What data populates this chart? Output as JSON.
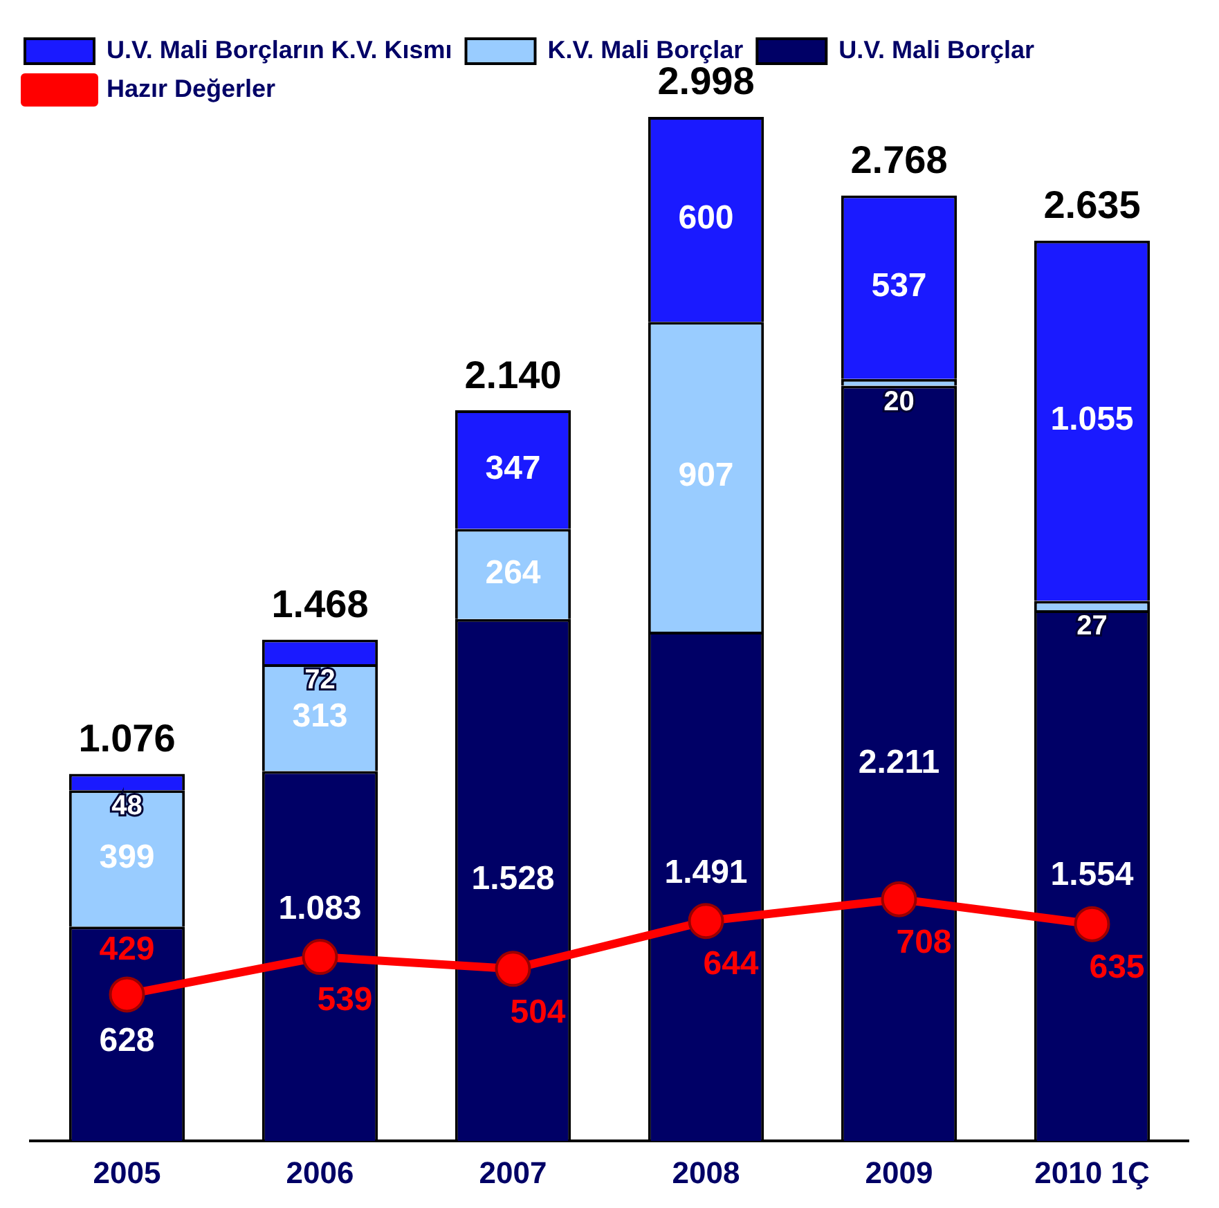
{
  "chart_data": {
    "type": "bar",
    "stacked": true,
    "categories": [
      "2005",
      "2006",
      "2007",
      "2008",
      "2009",
      "2010 1Ç"
    ],
    "series": [
      {
        "name": "U.V. Mali Borçlar",
        "color": "#000066",
        "values": [
          628,
          1083,
          1528,
          1491,
          2211,
          1554
        ],
        "value_labels": [
          "628",
          "1.083",
          "1.528",
          "1.491",
          "2.211",
          "1.554"
        ]
      },
      {
        "name": "K.V. Mali Borçlar",
        "color": "#99ccff",
        "values": [
          399,
          313,
          264,
          907,
          20,
          27
        ],
        "value_labels": [
          "399",
          "313",
          "264",
          "907",
          "20",
          "27"
        ]
      },
      {
        "name": "U.V. Mali Borçların K.V. Kısmı",
        "color": "#1a1aff",
        "values": [
          48,
          72,
          347,
          600,
          537,
          1055
        ],
        "value_labels": [
          "48",
          "72",
          "347",
          "600",
          "537",
          "1.055"
        ]
      },
      {
        "name": "Hazır Değerler",
        "type": "line",
        "color": "#ff0000",
        "marker": "circle",
        "values": [
          429,
          539,
          504,
          644,
          708,
          635
        ],
        "value_labels": [
          "429",
          "539",
          "504",
          "644",
          "708",
          "635"
        ]
      }
    ],
    "totals": [
      "1.076",
      "1.468",
      "2.140",
      "2.998",
      "2.768",
      "2.635"
    ],
    "legend": "top left",
    "grid": false
  }
}
